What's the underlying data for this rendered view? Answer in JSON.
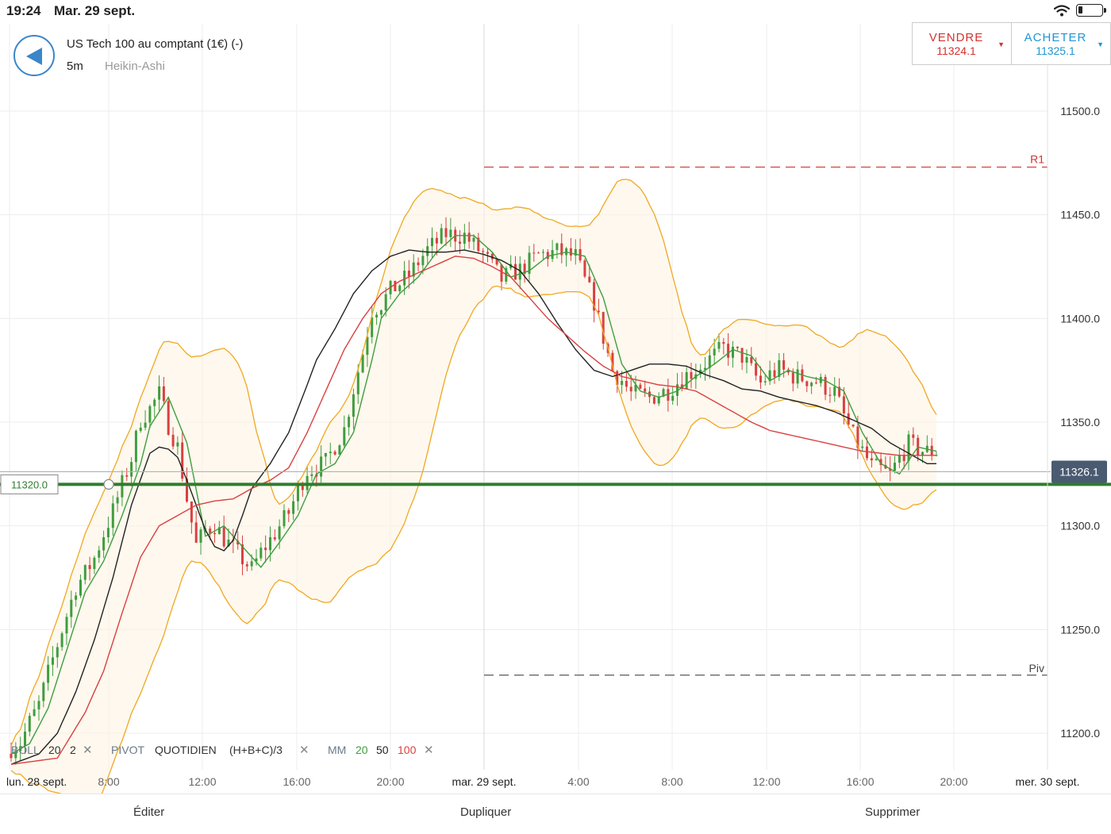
{
  "status": {
    "time": "19:24",
    "date": "Mar. 29 sept."
  },
  "instrument": {
    "name": "US Tech 100 au comptant (1€) (-)",
    "timeframe": "5m",
    "chart_type": "Heikin-Ashi"
  },
  "trade": {
    "sell_label": "VENDRE",
    "sell_price": "11324.1",
    "buy_label": "ACHETER",
    "buy_price": "11325.1",
    "sell_color": "#d23232",
    "buy_color": "#1e96d2"
  },
  "price_axis": {
    "labels": [
      "11500.0",
      "11450.0",
      "11400.0",
      "11350.0",
      "11300.0",
      "11250.0",
      "11200.0"
    ]
  },
  "time_axis": {
    "labels": [
      "lun. 28 sept.",
      "8:00",
      "12:00",
      "16:00",
      "20:00",
      "mar. 29 sept.",
      "4:00",
      "8:00",
      "12:00",
      "16:00",
      "20:00",
      "mer. 30 sept."
    ]
  },
  "levels": {
    "r1_label": "R1",
    "piv_label": "Piv",
    "current_price": "11326.1",
    "alert_price": "11320.0"
  },
  "indicators": {
    "boll_name": "BOLL",
    "boll_period": "20",
    "boll_dev": "2",
    "pivot_name": "PIVOT",
    "pivot_period": "QUOTIDIEN",
    "pivot_formula": "(H+B+C)/3",
    "mm_name": "MM",
    "mm_1": "20",
    "mm_2": "50",
    "mm_3": "100",
    "mm_colors": [
      "#3f9d3f",
      "#222222",
      "#d94040"
    ]
  },
  "icons": {
    "back": "back-arrow-icon",
    "close": "close-icon",
    "wifi": "wifi-icon",
    "battery": "battery-icon"
  },
  "bottom": {
    "edit": "Éditer",
    "duplicate": "Dupliquer",
    "delete": "Supprimer"
  },
  "chart_data": {
    "type": "line",
    "title": "",
    "ylim": [
      11185,
      11530
    ],
    "y_ticks": [
      11500,
      11450,
      11400,
      11350,
      11300,
      11250,
      11200
    ],
    "grid": true,
    "r1": 11473,
    "pivot": 11228,
    "alert_level": 11320,
    "last_price": 11326.1,
    "series": [
      {
        "name": "MM 20",
        "color": "#3f9d3f",
        "x": [
          0,
          4,
          8,
          12,
          16,
          20,
          24,
          28,
          30,
          34,
          38,
          42,
          46,
          50,
          54,
          58,
          62,
          66,
          70,
          74,
          78,
          80,
          84,
          88,
          92,
          96,
          100,
          104,
          108,
          112,
          116,
          120,
          124,
          128,
          132,
          136,
          140,
          144,
          148,
          152,
          156,
          160,
          164,
          168,
          172,
          176,
          180,
          184,
          188,
          192,
          196,
          200
        ],
        "values": [
          11190,
          11195,
          11212,
          11240,
          11268,
          11283,
          11305,
          11330,
          11348,
          11362,
          11340,
          11295,
          11300,
          11290,
          11280,
          11292,
          11305,
          11325,
          11330,
          11345,
          11380,
          11400,
          11412,
          11420,
          11432,
          11440,
          11440,
          11432,
          11420,
          11423,
          11430,
          11432,
          11430,
          11410,
          11378,
          11365,
          11362,
          11365,
          11372,
          11378,
          11385,
          11382,
          11370,
          11375,
          11372,
          11370,
          11365,
          11345,
          11330,
          11325,
          11338,
          11336
        ]
      },
      {
        "name": "MM 50",
        "color": "#222222",
        "x": [
          0,
          6,
          10,
          14,
          18,
          22,
          26,
          30,
          32,
          34,
          36,
          38,
          40,
          42,
          44,
          46,
          48,
          50,
          52,
          56,
          60,
          64,
          66,
          70,
          74,
          78,
          82,
          86,
          90,
          94,
          98,
          102,
          106,
          110,
          114,
          118,
          122,
          126,
          130,
          134,
          138,
          142,
          146,
          150,
          154,
          158,
          162,
          166,
          170,
          174,
          178,
          182,
          186,
          190,
          194,
          198,
          200
        ],
        "values": [
          11185,
          11190,
          11200,
          11220,
          11245,
          11275,
          11310,
          11335,
          11338,
          11337,
          11333,
          11322,
          11310,
          11298,
          11290,
          11288,
          11293,
          11305,
          11318,
          11330,
          11345,
          11368,
          11380,
          11395,
          11412,
          11423,
          11430,
          11433,
          11432,
          11432,
          11433,
          11431,
          11428,
          11423,
          11412,
          11398,
          11385,
          11375,
          11372,
          11375,
          11378,
          11378,
          11377,
          11373,
          11370,
          11366,
          11365,
          11362,
          11360,
          11358,
          11355,
          11351,
          11347,
          11340,
          11335,
          11330,
          11330
        ]
      },
      {
        "name": "MM 100",
        "color": "#d94040",
        "x": [
          0,
          10,
          16,
          20,
          24,
          28,
          32,
          36,
          40,
          44,
          48,
          52,
          56,
          60,
          64,
          68,
          72,
          76,
          80,
          84,
          88,
          92,
          96,
          100,
          104,
          108,
          112,
          116,
          120,
          124,
          128,
          132,
          136,
          140,
          144,
          148,
          152,
          156,
          160,
          164,
          168,
          172,
          176,
          180,
          184,
          188,
          192,
          196,
          200
        ],
        "values": [
          11185,
          11188,
          11210,
          11230,
          11258,
          11285,
          11300,
          11305,
          11310,
          11312,
          11313,
          11318,
          11322,
          11328,
          11345,
          11365,
          11385,
          11400,
          11412,
          11418,
          11422,
          11426,
          11430,
          11429,
          11425,
          11420,
          11410,
          11400,
          11392,
          11384,
          11377,
          11372,
          11370,
          11368,
          11367,
          11365,
          11360,
          11355,
          11350,
          11346,
          11344,
          11342,
          11340,
          11338,
          11336,
          11335,
          11334,
          11334,
          11334
        ]
      }
    ]
  }
}
